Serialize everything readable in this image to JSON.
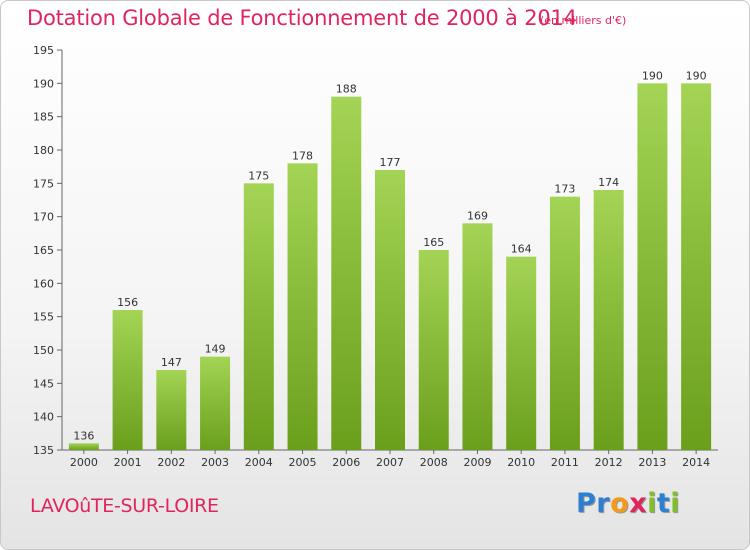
{
  "chart_data": {
    "type": "bar",
    "title": "Dotation Globale de Fonctionnement de 2000 à 2014",
    "subtitle": "(en milliers d'€)",
    "categories": [
      "2000",
      "2001",
      "2002",
      "2003",
      "2004",
      "2005",
      "2006",
      "2007",
      "2008",
      "2009",
      "2010",
      "2011",
      "2012",
      "2013",
      "2014"
    ],
    "values": [
      136,
      156,
      147,
      149,
      175,
      178,
      188,
      177,
      165,
      169,
      164,
      173,
      174,
      190,
      190
    ],
    "ylim": [
      135,
      195
    ],
    "yticks": [
      135,
      140,
      145,
      150,
      155,
      160,
      165,
      170,
      175,
      180,
      185,
      190,
      195
    ],
    "grid": false,
    "legend": "none",
    "colors": {
      "bar_light": "#a4d455",
      "bar_dark": "#6a9f1c",
      "title": "#e0245e"
    }
  },
  "footer": {
    "commune": "LAVOûTE-SUR-LOIRE",
    "logo_letters": [
      {
        "ch": "P",
        "color": "#2d7fd1"
      },
      {
        "ch": "r",
        "color": "#2d7fd1"
      },
      {
        "ch": "o",
        "color": "#f39a1c"
      },
      {
        "ch": "x",
        "color": "#e0245e"
      },
      {
        "ch": "i",
        "color": "#7fbf2a"
      },
      {
        "ch": "t",
        "color": "#2d7fd1"
      },
      {
        "ch": "i",
        "color": "#7fbf2a"
      }
    ]
  }
}
